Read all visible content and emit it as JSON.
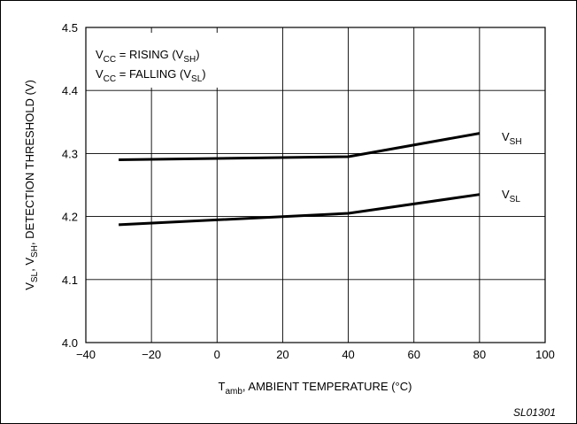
{
  "chart_data": {
    "type": "line",
    "title": "",
    "xlabel_parts": {
      "main": "T",
      "sub": "amb",
      "rest": ", AMBIENT TEMPERATURE (°C)"
    },
    "ylabel_parts": {
      "v1": "V",
      "s1": "SL",
      "c1": ", ",
      "v2": "V",
      "s2": "SH",
      "rest": ", DETECTION THRESHOLD (V)"
    },
    "xlim": [
      -40,
      100
    ],
    "ylim": [
      4.0,
      4.5
    ],
    "xticks": [
      "−40",
      "−20",
      "0",
      "20",
      "40",
      "60",
      "80",
      "100"
    ],
    "yticks": [
      "4.0",
      "4.1",
      "4.2",
      "4.3",
      "4.4",
      "4.5"
    ],
    "grid": true,
    "legend_position": "top-left",
    "legend": [
      {
        "pre": "V",
        "sub1": "CC",
        "mid": " = RISING (V",
        "sub2": "SH",
        "post": ")"
      },
      {
        "pre": "V",
        "sub1": "CC",
        "mid": " = FALLING (V",
        "sub2": "SL",
        "post": ")"
      }
    ],
    "series": [
      {
        "name": "V_SH",
        "label_main": "V",
        "label_sub": "SH",
        "x": [
          -30,
          40,
          80
        ],
        "y": [
          4.29,
          4.295,
          4.332
        ]
      },
      {
        "name": "V_SL",
        "label_main": "V",
        "label_sub": "SL",
        "x": [
          -30,
          40,
          80
        ],
        "y": [
          4.187,
          4.205,
          4.235
        ]
      }
    ],
    "footnote": "SL01301"
  }
}
